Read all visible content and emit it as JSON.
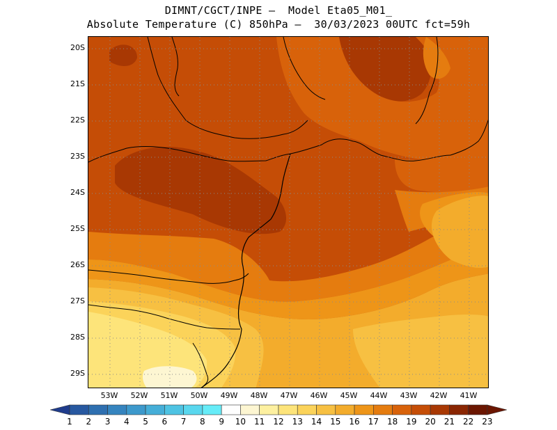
{
  "title": {
    "line1": "DIMNT/CGCT/INPE –  Model Eta05_M01_",
    "line2": "Absolute Temperature (C) 850hPa –  30/03/2023 00UTC fct=59h"
  },
  "map": {
    "region": "southeastern-brazil",
    "lat_labels": [
      "20S",
      "21S",
      "22S",
      "23S",
      "24S",
      "25S",
      "26S",
      "27S",
      "28S",
      "29S"
    ],
    "lon_labels": [
      "53W",
      "52W",
      "51W",
      "50W",
      "49W",
      "48W",
      "47W",
      "46W",
      "45W",
      "44W",
      "43W",
      "42W",
      "41W"
    ],
    "gridlines": "dotted",
    "field": "temperature-850hPa"
  },
  "colorbar": {
    "labels": [
      "1",
      "2",
      "3",
      "4",
      "5",
      "6",
      "7",
      "8",
      "9",
      "10",
      "11",
      "12",
      "13",
      "14",
      "15",
      "16",
      "17",
      "18",
      "19",
      "20",
      "21",
      "22",
      "23"
    ],
    "colors": [
      "#1f3c8c",
      "#2758a0",
      "#2e6fb0",
      "#3584bf",
      "#3d99cc",
      "#45aed8",
      "#4ec3e3",
      "#59d7ee",
      "#66ecf8",
      "#fefefe",
      "#fdf6d2",
      "#fdf0a0",
      "#fde47a",
      "#fbd35a",
      "#f7c042",
      "#f3ac2c",
      "#ee9518",
      "#e57c0f",
      "#d8620a",
      "#c54d06",
      "#a83803",
      "#8a2602",
      "#6b1601"
    ]
  }
}
